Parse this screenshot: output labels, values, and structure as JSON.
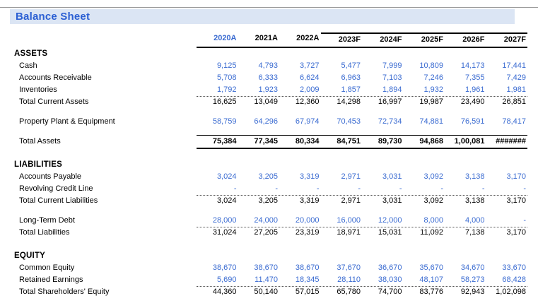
{
  "title": "Balance Sheet",
  "colors": {
    "accent_blue": "#3A6BD1",
    "title_blue": "#2B5FD3",
    "title_bar_bg": "#DBE5F4"
  },
  "columns": [
    "2020A",
    "2021A",
    "2022A",
    "2023F",
    "2024F",
    "2025F",
    "2026F",
    "2027F"
  ],
  "rows": [
    {
      "type": "section",
      "label": "ASSETS"
    },
    {
      "type": "data",
      "label": "Cash",
      "values": [
        "9,125",
        "4,793",
        "3,727",
        "5,477",
        "7,999",
        "10,809",
        "14,173",
        "17,441"
      ]
    },
    {
      "type": "data",
      "label": "Accounts Receivable",
      "values": [
        "5,708",
        "6,333",
        "6,624",
        "6,963",
        "7,103",
        "7,246",
        "7,355",
        "7,429"
      ]
    },
    {
      "type": "data",
      "label": "Inventories",
      "dotted": true,
      "values": [
        "1,792",
        "1,923",
        "2,009",
        "1,857",
        "1,894",
        "1,932",
        "1,961",
        "1,981"
      ]
    },
    {
      "type": "total",
      "label": "Total Current Assets",
      "values": [
        "16,625",
        "13,049",
        "12,360",
        "14,298",
        "16,997",
        "19,987",
        "23,490",
        "26,851"
      ]
    },
    {
      "type": "spacer"
    },
    {
      "type": "data",
      "label": "Property Plant & Equipment",
      "values": [
        "58,759",
        "64,296",
        "67,974",
        "70,453",
        "72,734",
        "74,881",
        "76,591",
        "78,417"
      ]
    },
    {
      "type": "spacer"
    },
    {
      "type": "grand",
      "label": "Total Assets",
      "values": [
        "75,384",
        "77,345",
        "80,334",
        "84,751",
        "89,730",
        "94,868",
        "1,00,081",
        "#######"
      ]
    },
    {
      "type": "spacer",
      "size": "lg"
    },
    {
      "type": "section",
      "label": "LIABILITIES"
    },
    {
      "type": "data",
      "label": "Accounts Payable",
      "values": [
        "3,024",
        "3,205",
        "3,319",
        "2,971",
        "3,031",
        "3,092",
        "3,138",
        "3,170"
      ]
    },
    {
      "type": "data",
      "label": "Revolving Credit Line",
      "dotted": true,
      "values": [
        "-",
        "-",
        "-",
        "-",
        "-",
        "-",
        "-",
        "-"
      ]
    },
    {
      "type": "total",
      "label": "Total Current Liabilities",
      "values": [
        "3,024",
        "3,205",
        "3,319",
        "2,971",
        "3,031",
        "3,092",
        "3,138",
        "3,170"
      ]
    },
    {
      "type": "spacer"
    },
    {
      "type": "data",
      "label": "Long-Term Debt",
      "dotted": true,
      "values": [
        "28,000",
        "24,000",
        "20,000",
        "16,000",
        "12,000",
        "8,000",
        "4,000",
        "-"
      ]
    },
    {
      "type": "total",
      "label": "Total Liabilities",
      "values": [
        "31,024",
        "27,205",
        "23,319",
        "18,971",
        "15,031",
        "11,092",
        "7,138",
        "3,170"
      ]
    },
    {
      "type": "spacer",
      "size": "lg"
    },
    {
      "type": "section",
      "label": "EQUITY"
    },
    {
      "type": "data",
      "label": "Common Equity",
      "values": [
        "38,670",
        "38,670",
        "38,670",
        "37,670",
        "36,670",
        "35,670",
        "34,670",
        "33,670"
      ]
    },
    {
      "type": "data",
      "label": "Retained Earnings",
      "dotted": true,
      "values": [
        "5,690",
        "11,470",
        "18,345",
        "28,110",
        "38,030",
        "48,107",
        "58,273",
        "68,428"
      ]
    },
    {
      "type": "total",
      "label": "Total Shareholders' Equity",
      "values": [
        "44,360",
        "50,140",
        "57,015",
        "65,780",
        "74,700",
        "83,776",
        "92,943",
        "1,02,098"
      ]
    }
  ]
}
